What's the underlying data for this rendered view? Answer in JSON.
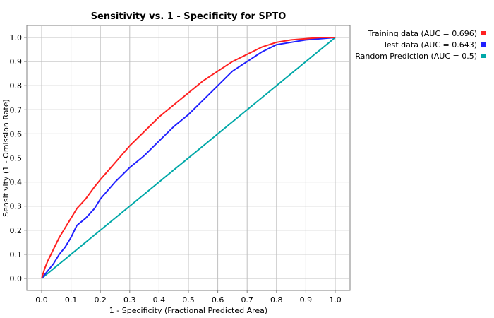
{
  "chart_data": {
    "type": "line",
    "title": "Sensitivity vs. 1 - Specificity for SPTO",
    "xlabel": "1 - Specificity  (Fractional Predicted Area)",
    "ylabel": "Sensitivity  (1 - Omission Rate)",
    "xlim": [
      0,
      1
    ],
    "ylim": [
      0,
      1
    ],
    "x_ticks": [
      "0.0",
      "0.1",
      "0.2",
      "0.3",
      "0.4",
      "0.5",
      "0.6",
      "0.7",
      "0.8",
      "0.9",
      "1.0"
    ],
    "y_ticks": [
      "0.0",
      "0.1",
      "0.2",
      "0.3",
      "0.4",
      "0.5",
      "0.6",
      "0.7",
      "0.8",
      "0.9",
      "1.0"
    ],
    "grid": true,
    "legend_position": "top-right-outside",
    "series": [
      {
        "name": "Training data (AUC = 0.696)",
        "color": "#ff2020",
        "x": [
          0,
          0.01,
          0.02,
          0.04,
          0.06,
          0.08,
          0.1,
          0.12,
          0.15,
          0.18,
          0.2,
          0.25,
          0.3,
          0.35,
          0.4,
          0.45,
          0.5,
          0.55,
          0.6,
          0.65,
          0.7,
          0.75,
          0.8,
          0.85,
          0.9,
          0.95,
          1.0
        ],
        "y": [
          0,
          0.04,
          0.07,
          0.12,
          0.17,
          0.21,
          0.25,
          0.29,
          0.33,
          0.38,
          0.41,
          0.48,
          0.55,
          0.61,
          0.67,
          0.72,
          0.77,
          0.82,
          0.86,
          0.9,
          0.93,
          0.96,
          0.98,
          0.99,
          0.995,
          1.0,
          1.0
        ]
      },
      {
        "name": "Test data (AUC = 0.643)",
        "color": "#2020ff",
        "x": [
          0,
          0.02,
          0.04,
          0.06,
          0.08,
          0.1,
          0.12,
          0.15,
          0.18,
          0.2,
          0.25,
          0.3,
          0.35,
          0.4,
          0.45,
          0.5,
          0.55,
          0.6,
          0.65,
          0.7,
          0.75,
          0.8,
          0.85,
          0.9,
          0.95,
          1.0
        ],
        "y": [
          0,
          0.03,
          0.06,
          0.1,
          0.13,
          0.17,
          0.22,
          0.25,
          0.29,
          0.33,
          0.4,
          0.46,
          0.51,
          0.57,
          0.63,
          0.68,
          0.74,
          0.8,
          0.86,
          0.9,
          0.94,
          0.97,
          0.98,
          0.99,
          0.995,
          1.0
        ]
      },
      {
        "name": "Random Prediction (AUC = 0.5)",
        "color": "#00a8a8",
        "x": [
          0,
          1
        ],
        "y": [
          0,
          1
        ]
      }
    ]
  }
}
